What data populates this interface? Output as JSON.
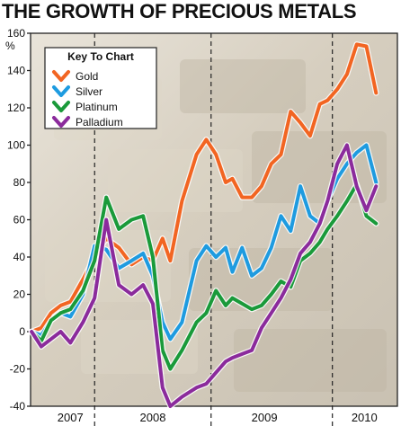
{
  "title": "THE GROWTH OF PRECIOUS METALS",
  "chart_data": {
    "type": "line",
    "title": "THE GROWTH OF PRECIOUS METALS",
    "ylabel": "%",
    "xlabel": "",
    "ylim": [
      -40,
      160
    ],
    "xlim": [
      2006.84,
      2010.62
    ],
    "yticks": [
      -40,
      -20,
      0,
      20,
      40,
      60,
      80,
      100,
      120,
      140,
      160
    ],
    "year_labels": [
      {
        "label": "2007",
        "x": 2007.25
      },
      {
        "label": "2008",
        "x": 2008.1
      },
      {
        "label": "2009",
        "x": 2009.25
      },
      {
        "label": "2010",
        "x": 2010.28
      }
    ],
    "year_dividers": [
      2007.5,
      2008.7,
      2009.95
    ],
    "grid": "dashed vertical year dividers",
    "legend": {
      "title": "Key To Chart",
      "position": "top-left"
    },
    "series": [
      {
        "name": "Gold",
        "color": "#f26522",
        "points": [
          [
            2006.85,
            0
          ],
          [
            2006.95,
            2
          ],
          [
            2007.05,
            10
          ],
          [
            2007.15,
            14
          ],
          [
            2007.25,
            16
          ],
          [
            2007.38,
            28
          ],
          [
            2007.5,
            40
          ],
          [
            2007.62,
            50
          ],
          [
            2007.75,
            45
          ],
          [
            2007.88,
            36
          ],
          [
            2008.0,
            40
          ],
          [
            2008.1,
            38
          ],
          [
            2008.2,
            50
          ],
          [
            2008.28,
            38
          ],
          [
            2008.4,
            70
          ],
          [
            2008.55,
            95
          ],
          [
            2008.65,
            103
          ],
          [
            2008.75,
            95
          ],
          [
            2008.85,
            80
          ],
          [
            2008.92,
            82
          ],
          [
            2009.02,
            72
          ],
          [
            2009.12,
            72
          ],
          [
            2009.22,
            78
          ],
          [
            2009.32,
            90
          ],
          [
            2009.42,
            95
          ],
          [
            2009.52,
            118
          ],
          [
            2009.62,
            112
          ],
          [
            2009.72,
            105
          ],
          [
            2009.82,
            122
          ],
          [
            2009.9,
            124
          ],
          [
            2010.0,
            130
          ],
          [
            2010.1,
            138
          ],
          [
            2010.2,
            154
          ],
          [
            2010.3,
            153
          ],
          [
            2010.4,
            128
          ]
        ]
      },
      {
        "name": "Silver",
        "color": "#1e9be0",
        "points": [
          [
            2006.85,
            0
          ],
          [
            2006.95,
            -2
          ],
          [
            2007.05,
            6
          ],
          [
            2007.15,
            10
          ],
          [
            2007.25,
            8
          ],
          [
            2007.38,
            20
          ],
          [
            2007.5,
            46
          ],
          [
            2007.62,
            44
          ],
          [
            2007.75,
            34
          ],
          [
            2007.88,
            38
          ],
          [
            2008.0,
            42
          ],
          [
            2008.1,
            30
          ],
          [
            2008.2,
            5
          ],
          [
            2008.28,
            -4
          ],
          [
            2008.4,
            5
          ],
          [
            2008.55,
            38
          ],
          [
            2008.65,
            46
          ],
          [
            2008.75,
            40
          ],
          [
            2008.85,
            45
          ],
          [
            2008.92,
            32
          ],
          [
            2009.02,
            45
          ],
          [
            2009.12,
            30
          ],
          [
            2009.22,
            34
          ],
          [
            2009.32,
            45
          ],
          [
            2009.42,
            62
          ],
          [
            2009.52,
            54
          ],
          [
            2009.62,
            78
          ],
          [
            2009.72,
            62
          ],
          [
            2009.82,
            58
          ],
          [
            2009.9,
            70
          ],
          [
            2010.0,
            82
          ],
          [
            2010.1,
            90
          ],
          [
            2010.2,
            96
          ],
          [
            2010.3,
            100
          ],
          [
            2010.4,
            80
          ]
        ]
      },
      {
        "name": "Platinum",
        "color": "#1a9a3a",
        "points": [
          [
            2006.85,
            0
          ],
          [
            2006.95,
            -5
          ],
          [
            2007.05,
            6
          ],
          [
            2007.15,
            10
          ],
          [
            2007.25,
            12
          ],
          [
            2007.38,
            22
          ],
          [
            2007.5,
            38
          ],
          [
            2007.62,
            72
          ],
          [
            2007.75,
            55
          ],
          [
            2007.88,
            60
          ],
          [
            2008.0,
            62
          ],
          [
            2008.1,
            40
          ],
          [
            2008.2,
            -10
          ],
          [
            2008.28,
            -20
          ],
          [
            2008.4,
            -10
          ],
          [
            2008.55,
            5
          ],
          [
            2008.65,
            10
          ],
          [
            2008.75,
            22
          ],
          [
            2008.85,
            14
          ],
          [
            2008.92,
            18
          ],
          [
            2009.02,
            15
          ],
          [
            2009.12,
            12
          ],
          [
            2009.22,
            14
          ],
          [
            2009.32,
            20
          ],
          [
            2009.42,
            27
          ],
          [
            2009.52,
            24
          ],
          [
            2009.62,
            38
          ],
          [
            2009.72,
            42
          ],
          [
            2009.82,
            48
          ],
          [
            2009.9,
            55
          ],
          [
            2010.0,
            62
          ],
          [
            2010.1,
            70
          ],
          [
            2010.2,
            79
          ],
          [
            2010.3,
            62
          ],
          [
            2010.4,
            58
          ]
        ]
      },
      {
        "name": "Palladium",
        "color": "#8b2b9c",
        "points": [
          [
            2006.85,
            0
          ],
          [
            2006.95,
            -8
          ],
          [
            2007.05,
            -4
          ],
          [
            2007.15,
            0
          ],
          [
            2007.25,
            -6
          ],
          [
            2007.38,
            5
          ],
          [
            2007.5,
            18
          ],
          [
            2007.62,
            60
          ],
          [
            2007.75,
            25
          ],
          [
            2007.88,
            20
          ],
          [
            2008.0,
            25
          ],
          [
            2008.1,
            15
          ],
          [
            2008.2,
            -30
          ],
          [
            2008.28,
            -40
          ],
          [
            2008.4,
            -35
          ],
          [
            2008.55,
            -30
          ],
          [
            2008.65,
            -28
          ],
          [
            2008.75,
            -22
          ],
          [
            2008.85,
            -16
          ],
          [
            2008.92,
            -14
          ],
          [
            2009.02,
            -12
          ],
          [
            2009.12,
            -10
          ],
          [
            2009.22,
            2
          ],
          [
            2009.32,
            10
          ],
          [
            2009.42,
            18
          ],
          [
            2009.52,
            28
          ],
          [
            2009.62,
            42
          ],
          [
            2009.72,
            48
          ],
          [
            2009.82,
            58
          ],
          [
            2009.9,
            70
          ],
          [
            2010.0,
            90
          ],
          [
            2010.1,
            100
          ],
          [
            2010.2,
            78
          ],
          [
            2010.3,
            65
          ],
          [
            2010.4,
            78
          ]
        ]
      }
    ]
  }
}
